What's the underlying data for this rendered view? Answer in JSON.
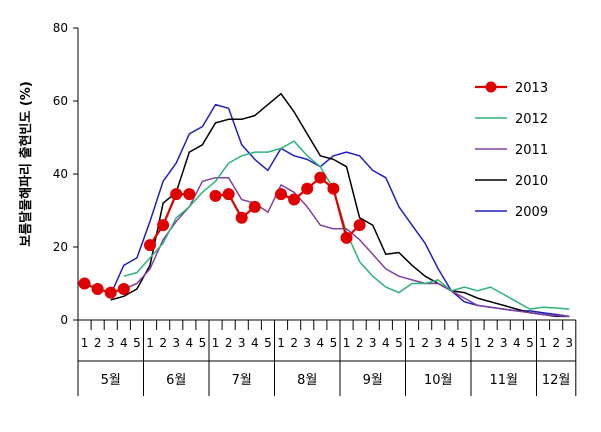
{
  "chart_data": {
    "type": "line",
    "ylabel": "보름달물해파리 출현빈도 (%)",
    "ylim": [
      0,
      80
    ],
    "yticks": [
      0,
      20,
      40,
      60,
      80
    ],
    "grid": false,
    "legend_position": "right",
    "months": [
      {
        "label": "5월",
        "weeks": [
          "1",
          "2",
          "3",
          "4",
          "5"
        ]
      },
      {
        "label": "6월",
        "weeks": [
          "1",
          "2",
          "3",
          "4",
          "5"
        ]
      },
      {
        "label": "7월",
        "weeks": [
          "1",
          "2",
          "3",
          "4",
          "5"
        ]
      },
      {
        "label": "8월",
        "weeks": [
          "1",
          "2",
          "3",
          "4",
          "5"
        ]
      },
      {
        "label": "9월",
        "weeks": [
          "1",
          "2",
          "3",
          "4",
          "5"
        ]
      },
      {
        "label": "10월",
        "weeks": [
          "1",
          "2",
          "3",
          "4",
          "5"
        ]
      },
      {
        "label": "11월",
        "weeks": [
          "1",
          "2",
          "3",
          "4",
          "5"
        ]
      },
      {
        "label": "12월",
        "weeks": [
          "1",
          "2",
          "3"
        ]
      }
    ],
    "series": [
      {
        "name": "2013",
        "color": "#e00000",
        "marker": "circle",
        "values": [
          10,
          8.5,
          7.5,
          8.5,
          null,
          20.5,
          26,
          34.5,
          34.5,
          null,
          34,
          34.5,
          28,
          31,
          null,
          34.5,
          33,
          36,
          39,
          36,
          22.5,
          26
        ]
      },
      {
        "name": "2012",
        "color": "#2db37a",
        "marker": "none",
        "values": [
          null,
          null,
          null,
          12,
          13,
          17,
          21,
          28,
          31,
          35,
          38,
          43,
          45,
          46,
          46,
          47,
          49,
          45,
          42,
          36,
          24,
          16,
          12,
          9,
          7.5,
          10,
          10,
          11,
          8,
          9,
          8,
          9,
          7,
          5,
          3,
          3.5,
          3.3,
          3
        ]
      },
      {
        "name": "2011",
        "color": "#8040a0",
        "marker": "none",
        "values": [
          null,
          null,
          null,
          8.5,
          10,
          14,
          22,
          27,
          31,
          38,
          39,
          39,
          33,
          32,
          29.5,
          37,
          35,
          31,
          26,
          25,
          25,
          22,
          18,
          14,
          12,
          11,
          10,
          10,
          8,
          6,
          4,
          3.5,
          3,
          2.5,
          2,
          1.5,
          1.2,
          1
        ]
      },
      {
        "name": "2010",
        "color": "#000000",
        "marker": "none",
        "values": [
          null,
          null,
          5.5,
          6.5,
          8.5,
          15,
          32,
          35,
          46,
          48,
          54,
          55,
          55,
          56,
          59,
          62,
          57,
          51,
          45,
          44,
          42,
          28,
          26,
          18,
          18.5,
          15,
          12,
          10,
          8,
          7.5,
          6,
          5,
          4,
          3,
          2,
          1.5,
          1,
          1
        ]
      },
      {
        "name": "2009",
        "color": "#2020c0",
        "marker": "none",
        "values": [
          null,
          null,
          7,
          15,
          17,
          27,
          38,
          43,
          51,
          53,
          59,
          58,
          48,
          44,
          41,
          47,
          45,
          44,
          42,
          45,
          46,
          45,
          41,
          39,
          31,
          26,
          21,
          14,
          8,
          5,
          4,
          3.5,
          3,
          2.5,
          2.5,
          2,
          1.5,
          1
        ]
      }
    ]
  }
}
